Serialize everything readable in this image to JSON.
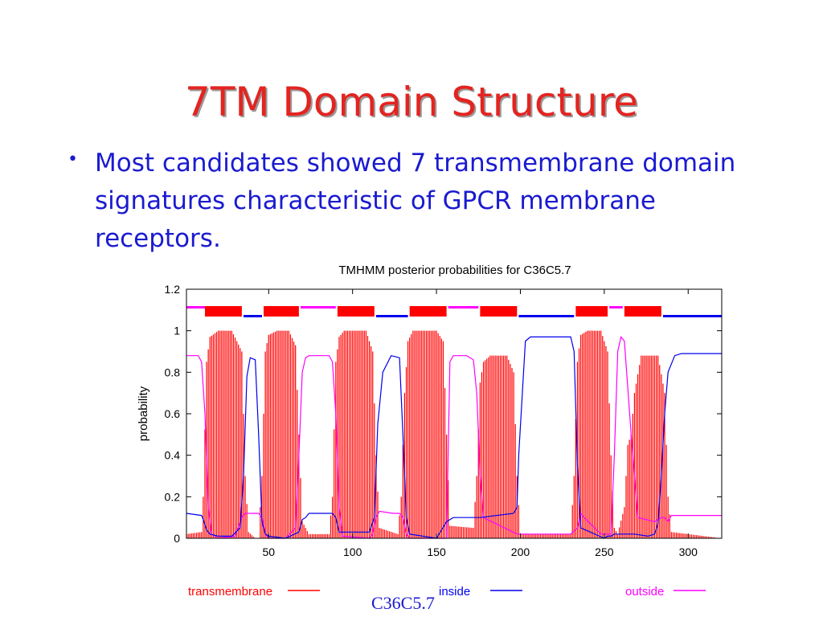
{
  "slide": {
    "title": "7TM Domain Structure",
    "bullet_symbol": "•",
    "bullet": "Most candidates showed 7 transmembrane domain signatures characteristic of GPCR membrane receptors.",
    "footer": "C36C5.7"
  },
  "colors": {
    "title": "#e32420",
    "body_text": "#1a1ad0",
    "transmembrane": "#ff0000",
    "inside": "#0000ee",
    "outside": "#ff00ff"
  },
  "chart_data": {
    "type": "line",
    "title": "TMHMM posterior probabilities for C36C5.7",
    "xlabel": "",
    "ylabel": "probability",
    "xlim": [
      1,
      320
    ],
    "ylim": [
      0,
      1.2
    ],
    "x_ticks": [
      50,
      100,
      150,
      200,
      250,
      300
    ],
    "y_ticks": [
      0,
      0.2,
      0.4,
      0.6,
      0.8,
      1,
      1.2
    ],
    "y_tick_labels": [
      "0",
      "0.2",
      "0.4",
      "0.6",
      "0.8",
      "1",
      "1.2"
    ],
    "legend": [
      {
        "name": "transmembrane",
        "color": "#ff0000"
      },
      {
        "name": "inside",
        "color": "#0000ee"
      },
      {
        "name": "outside",
        "color": "#ff00ff"
      }
    ],
    "topology_bar": [
      {
        "kind": "outside",
        "start": 1,
        "end": 12
      },
      {
        "kind": "transmembrane",
        "start": 12,
        "end": 34
      },
      {
        "kind": "inside",
        "start": 35,
        "end": 46
      },
      {
        "kind": "transmembrane",
        "start": 47,
        "end": 68
      },
      {
        "kind": "outside",
        "start": 69,
        "end": 90
      },
      {
        "kind": "transmembrane",
        "start": 91,
        "end": 113
      },
      {
        "kind": "inside",
        "start": 114,
        "end": 133
      },
      {
        "kind": "transmembrane",
        "start": 134,
        "end": 156
      },
      {
        "kind": "outside",
        "start": 157,
        "end": 175
      },
      {
        "kind": "transmembrane",
        "start": 176,
        "end": 198
      },
      {
        "kind": "inside",
        "start": 199,
        "end": 232
      },
      {
        "kind": "transmembrane",
        "start": 233,
        "end": 252
      },
      {
        "kind": "outside",
        "start": 253,
        "end": 261
      },
      {
        "kind": "transmembrane",
        "start": 262,
        "end": 284
      },
      {
        "kind": "inside",
        "start": 285,
        "end": 320
      }
    ],
    "series": [
      {
        "name": "transmembrane",
        "x": [
          1,
          10,
          11,
          13,
          15,
          20,
          28,
          34,
          36,
          38,
          42,
          44,
          46,
          48,
          50,
          55,
          62,
          66,
          68,
          70,
          74,
          86,
          88,
          90,
          92,
          95,
          108,
          112,
          114,
          116,
          127,
          129,
          131,
          133,
          136,
          150,
          154,
          156,
          158,
          172,
          174,
          176,
          178,
          182,
          192,
          196,
          198,
          200,
          230,
          232,
          234,
          236,
          240,
          248,
          252,
          254,
          256,
          258,
          262,
          264,
          266,
          268,
          272,
          282,
          286,
          288,
          290,
          320
        ],
        "y": [
          0.02,
          0.03,
          0.2,
          0.85,
          0.97,
          1.0,
          1.0,
          0.9,
          0.3,
          0.03,
          0.0,
          0.0,
          0.3,
          0.9,
          0.98,
          1.0,
          1.0,
          0.93,
          0.5,
          0.08,
          0.02,
          0.02,
          0.2,
          0.85,
          0.97,
          1.0,
          1.0,
          0.9,
          0.4,
          0.05,
          0.02,
          0.2,
          0.7,
          0.95,
          1.0,
          1.0,
          0.95,
          0.5,
          0.06,
          0.05,
          0.3,
          0.75,
          0.85,
          0.88,
          0.88,
          0.8,
          0.3,
          0.02,
          0.02,
          0.3,
          0.85,
          0.98,
          1.0,
          1.0,
          0.9,
          0.4,
          0.05,
          0.02,
          0.15,
          0.45,
          0.5,
          0.7,
          0.88,
          0.88,
          0.7,
          0.2,
          0.03,
          0.0
        ]
      },
      {
        "name": "inside",
        "x": [
          1,
          10,
          11,
          13,
          15,
          20,
          28,
          33,
          35,
          37,
          39,
          42,
          44,
          46,
          48,
          50,
          60,
          68,
          70,
          72,
          74,
          88,
          90,
          92,
          110,
          113,
          115,
          118,
          123,
          128,
          130,
          132,
          134,
          150,
          156,
          160,
          172,
          174,
          176,
          196,
          198,
          199,
          203,
          206,
          230,
          232,
          234,
          236,
          250,
          252,
          254,
          256,
          258,
          262,
          268,
          276,
          280,
          282,
          284,
          286,
          288,
          292,
          296,
          320
        ],
        "y": [
          0.12,
          0.11,
          0.09,
          0.04,
          0.02,
          0.01,
          0.01,
          0.05,
          0.3,
          0.78,
          0.87,
          0.86,
          0.5,
          0.08,
          0.02,
          0.01,
          0.0,
          0.03,
          0.09,
          0.1,
          0.12,
          0.12,
          0.1,
          0.03,
          0.03,
          0.1,
          0.55,
          0.8,
          0.88,
          0.87,
          0.5,
          0.1,
          0.02,
          0.0,
          0.08,
          0.1,
          0.1,
          0.1,
          0.1,
          0.12,
          0.15,
          0.4,
          0.95,
          0.97,
          0.97,
          0.9,
          0.35,
          0.05,
          0.0,
          0.01,
          0.01,
          0.02,
          0.02,
          0.02,
          0.02,
          0.01,
          0.02,
          0.07,
          0.3,
          0.6,
          0.8,
          0.88,
          0.89,
          0.89
        ]
      },
      {
        "name": "outside",
        "x": [
          1,
          8,
          10,
          12,
          14,
          16,
          20,
          30,
          34,
          36,
          40,
          44,
          46,
          48,
          50,
          60,
          66,
          68,
          70,
          72,
          74,
          86,
          88,
          90,
          92,
          94,
          110,
          112,
          114,
          116,
          124,
          128,
          130,
          132,
          134,
          156,
          158,
          160,
          168,
          172,
          174,
          176,
          178,
          198,
          200,
          220,
          230,
          234,
          236,
          238,
          248,
          254,
          256,
          258,
          260,
          262,
          266,
          270,
          280,
          284,
          286,
          288,
          290,
          320
        ],
        "y": [
          0.88,
          0.88,
          0.85,
          0.6,
          0.15,
          0.02,
          0.0,
          0.01,
          0.1,
          0.12,
          0.12,
          0.12,
          0.1,
          0.02,
          0.0,
          0.0,
          0.05,
          0.4,
          0.8,
          0.87,
          0.88,
          0.88,
          0.85,
          0.6,
          0.15,
          0.01,
          0.0,
          0.02,
          0.1,
          0.13,
          0.12,
          0.12,
          0.1,
          0.02,
          0.0,
          0.0,
          0.85,
          0.88,
          0.88,
          0.86,
          0.7,
          0.3,
          0.1,
          0.02,
          0.02,
          0.02,
          0.02,
          0.05,
          0.12,
          0.1,
          0.02,
          0.02,
          0.4,
          0.9,
          0.97,
          0.95,
          0.5,
          0.1,
          0.08,
          0.1,
          0.1,
          0.08,
          0.11,
          0.11
        ]
      }
    ]
  }
}
